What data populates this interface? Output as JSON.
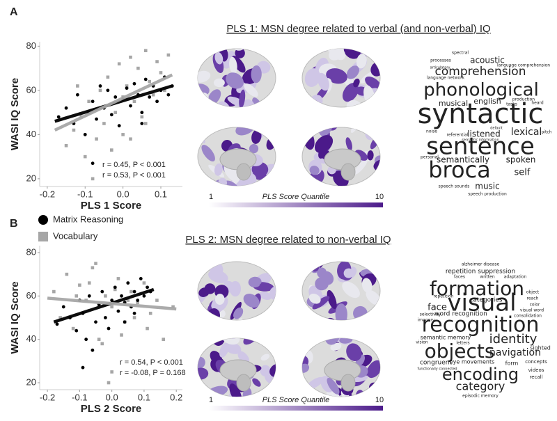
{
  "chart_data": [
    {
      "type": "scatter",
      "xlabel": "PLS 1 Score",
      "ylabel": "WASI IQ Score",
      "xlim": [
        -0.22,
        0.157
      ],
      "ylim": [
        16.5,
        82
      ],
      "xticks": [
        -0.2,
        -0.1,
        {
          "value": 0,
          "label": "0.0"
        },
        0.1
      ],
      "yticks": [
        20,
        40,
        60,
        80
      ],
      "series": [
        {
          "color": "#000000",
          "marker": "circle",
          "x": [
            -0.17,
            -0.15,
            -0.13,
            -0.12,
            -0.1,
            -0.09,
            -0.08,
            -0.07,
            -0.06,
            -0.05,
            -0.04,
            -0.03,
            -0.02,
            -0.01,
            0,
            0.01,
            0.02,
            0.03,
            0.04,
            0.05,
            0.06,
            0.07,
            0.08,
            0.09,
            0.1,
            0.11,
            0.12,
            0.13,
            -0.08,
            0.05
          ],
          "values": [
            48,
            52,
            45,
            58,
            40,
            50,
            55,
            47,
            62,
            52,
            60,
            49,
            57,
            44,
            56,
            61,
            53,
            63,
            58,
            50,
            65,
            57,
            62,
            55,
            60,
            66,
            58,
            62,
            27,
            45
          ],
          "fit": {
            "x": [
              -0.18,
              0.13
            ],
            "values": [
              46,
              62
            ]
          }
        },
        {
          "color": "#a6a6a6",
          "marker": "square",
          "x": [
            -0.15,
            -0.13,
            -0.11,
            -0.1,
            -0.09,
            -0.07,
            -0.06,
            -0.05,
            -0.04,
            -0.02,
            -0.01,
            0,
            0.01,
            0.02,
            0.03,
            0.04,
            0.05,
            0.06,
            0.07,
            0.08,
            0.09,
            0.1,
            0.11,
            0.12,
            -0.12,
            -0.03,
            0.0,
            0.06,
            0.02,
            -0.08
          ],
          "values": [
            35,
            42,
            48,
            30,
            55,
            38,
            60,
            45,
            66,
            50,
            72,
            40,
            62,
            75,
            55,
            70,
            48,
            78,
            64,
            58,
            73,
            68,
            60,
            76,
            62,
            33,
            57,
            45,
            38,
            20
          ],
          "fit": {
            "x": [
              -0.18,
              0.13
            ],
            "values": [
              42,
              67
            ]
          }
        }
      ],
      "annotations": [
        {
          "text": "r = 0.45, P < 0.001",
          "color": "#000000"
        },
        {
          "text": "r = 0.53, P < 0.001",
          "color": "#8c8c8c"
        }
      ]
    },
    {
      "type": "scatter",
      "xlabel": "PLS 2 Score",
      "ylabel": "WASI IQ Score",
      "xlim": [
        -0.224,
        0.219
      ],
      "ylim": [
        16.8,
        83.2
      ],
      "xticks": [
        -0.2,
        -0.1,
        {
          "value": 0,
          "label": "0.0"
        },
        0.1,
        0.2
      ],
      "yticks": [
        20,
        40,
        60,
        80
      ],
      "series": [
        {
          "name": "Matrix Reasoning",
          "color": "#000000",
          "marker": "circle",
          "x": [
            -0.17,
            -0.15,
            -0.13,
            -0.11,
            -0.1,
            -0.09,
            -0.08,
            -0.07,
            -0.05,
            -0.04,
            -0.03,
            -0.02,
            -0.01,
            0,
            0.01,
            0.02,
            0.03,
            0.04,
            0.05,
            0.06,
            0.07,
            0.08,
            0.09,
            0.1,
            0.11,
            0.12,
            -0.06,
            0.04,
            -0.09,
            0.07
          ],
          "values": [
            47,
            55,
            50,
            44,
            58,
            52,
            40,
            60,
            48,
            56,
            62,
            50,
            45,
            58,
            64,
            53,
            60,
            57,
            66,
            55,
            62,
            58,
            68,
            60,
            64,
            62,
            35,
            48,
            27,
            52
          ],
          "fit": {
            "x": [
              -0.18,
              0.13
            ],
            "values": [
              48,
              63
            ]
          }
        },
        {
          "name": "Vocabulary",
          "color": "#a6a6a6",
          "marker": "square",
          "x": [
            -0.18,
            -0.16,
            -0.14,
            -0.12,
            -0.1,
            -0.08,
            -0.06,
            -0.04,
            -0.02,
            0,
            0.02,
            0.04,
            0.06,
            0.08,
            0.1,
            0.12,
            0.14,
            0.16,
            0.19,
            -0.05,
            0.03,
            -0.11,
            0.07,
            0.01,
            -0.03,
            0.11,
            -0.07,
            0.05,
            0.0,
            -0.01
          ],
          "values": [
            62,
            50,
            70,
            45,
            65,
            58,
            73,
            40,
            60,
            55,
            68,
            48,
            62,
            57,
            66,
            52,
            58,
            40,
            55,
            75,
            42,
            60,
            50,
            63,
            38,
            45,
            66,
            58,
            25,
            20
          ],
          "fit": {
            "x": [
              -0.2,
              0.2
            ],
            "values": [
              59,
              54
            ]
          }
        }
      ],
      "annotations": [
        {
          "text": "r = 0.54, P < 0.001",
          "color": "#000000"
        },
        {
          "text": "r = -0.08, P = 0.168",
          "color": "#8c8c8c"
        }
      ]
    }
  ],
  "panels": [
    {
      "label": "A",
      "title": "PLS 1: MSN degree related to verbal (and non-verbal) IQ",
      "colorbar": {
        "range": [
          1,
          10
        ],
        "label": "PLS Score Quantile"
      },
      "words": [
        "spectral",
        "processes",
        "acoustic",
        "language comprehension",
        "articulatory",
        "comprehension",
        "language network",
        "phonological",
        "production",
        "musical",
        "english",
        "tasks",
        "heard",
        "syntactic",
        "noise",
        "default",
        "listened",
        "referential",
        "lexical",
        "pitch",
        "semantic information",
        "sentence",
        "personal",
        "semantically",
        "spoken",
        "broca",
        "self",
        "speech sounds",
        "music",
        "speech production"
      ]
    },
    {
      "label": "B",
      "title": "PLS 2: MSN degree related to non-verbal IQ",
      "colorbar": {
        "range": [
          1,
          10
        ],
        "label": "PLS Score Quantile"
      },
      "words": [
        "alzheimer disease",
        "repetition suppression",
        "faces",
        "written",
        "adaptation",
        "formation",
        "repetition",
        "categories",
        "object",
        "reach",
        "face",
        "visual",
        "color",
        "visual word",
        "consolidation",
        "selectivity",
        "word recognition",
        "imagery",
        "recognition",
        "semantic memory",
        "identity",
        "vision",
        "letters",
        "sighted",
        "objects",
        "navigation",
        "congruent",
        "eye movements",
        "form",
        "concepts",
        "functionally connected",
        "encoding",
        "videos",
        "recall",
        "category",
        "episodic memory"
      ]
    }
  ]
}
